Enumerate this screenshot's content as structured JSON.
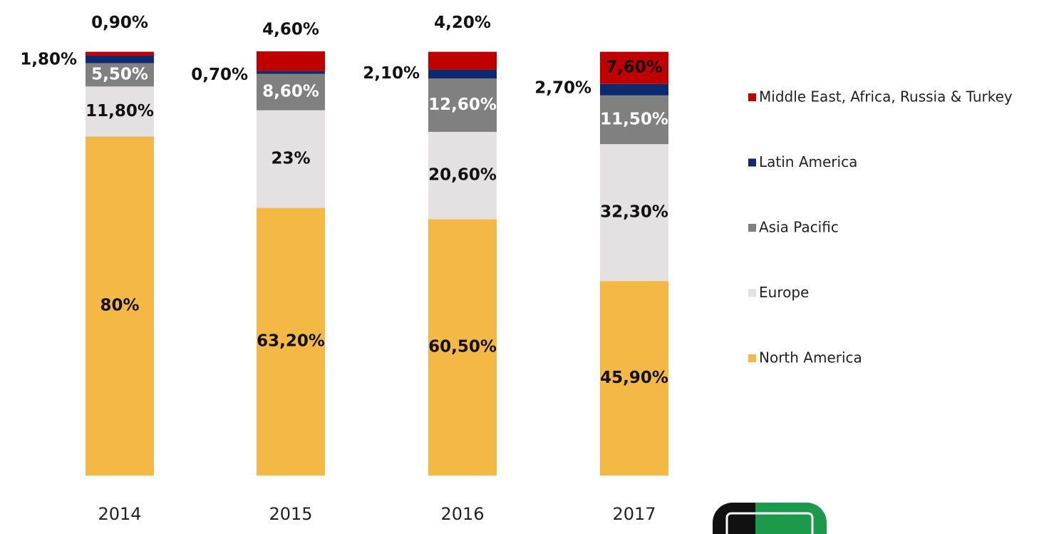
{
  "chart_data": {
    "type": "stacked_bar",
    "categories": [
      "2014",
      "2015",
      "2016",
      "2017"
    ],
    "series": [
      {
        "name": "North America",
        "color": "#f4b844",
        "values": [
          80,
          63.2,
          60.5,
          45.9
        ],
        "value_labels": [
          "80%",
          "63,20%",
          "60,50%",
          "45,90%"
        ]
      },
      {
        "name": "Europe",
        "color": "#e3e1e2",
        "values": [
          11.8,
          23,
          20.6,
          32.3
        ],
        "value_labels": [
          "11,80%",
          "23%",
          "20,60%",
          "32,30%"
        ]
      },
      {
        "name": "Asia Pacific",
        "color": "#808080",
        "values": [
          5.5,
          8.6,
          12.6,
          11.5
        ],
        "value_labels": [
          "5,50%",
          "8,60%",
          "12,60%",
          "11,50%"
        ]
      },
      {
        "name": "Latin America",
        "color": "#0e2a6e",
        "values": [
          1.8,
          0.7,
          2.1,
          2.7
        ],
        "value_labels": [
          "1,80%",
          "0,70%",
          "2,10%",
          "2,70%"
        ]
      },
      {
        "name": "Middle East, Africa, Russia & Turkey",
        "color": "#c00000",
        "values": [
          0.9,
          4.6,
          4.2,
          7.6
        ],
        "value_labels": [
          "0,90%",
          "4,60%",
          "4,20%",
          "7,60%"
        ]
      }
    ]
  }
}
